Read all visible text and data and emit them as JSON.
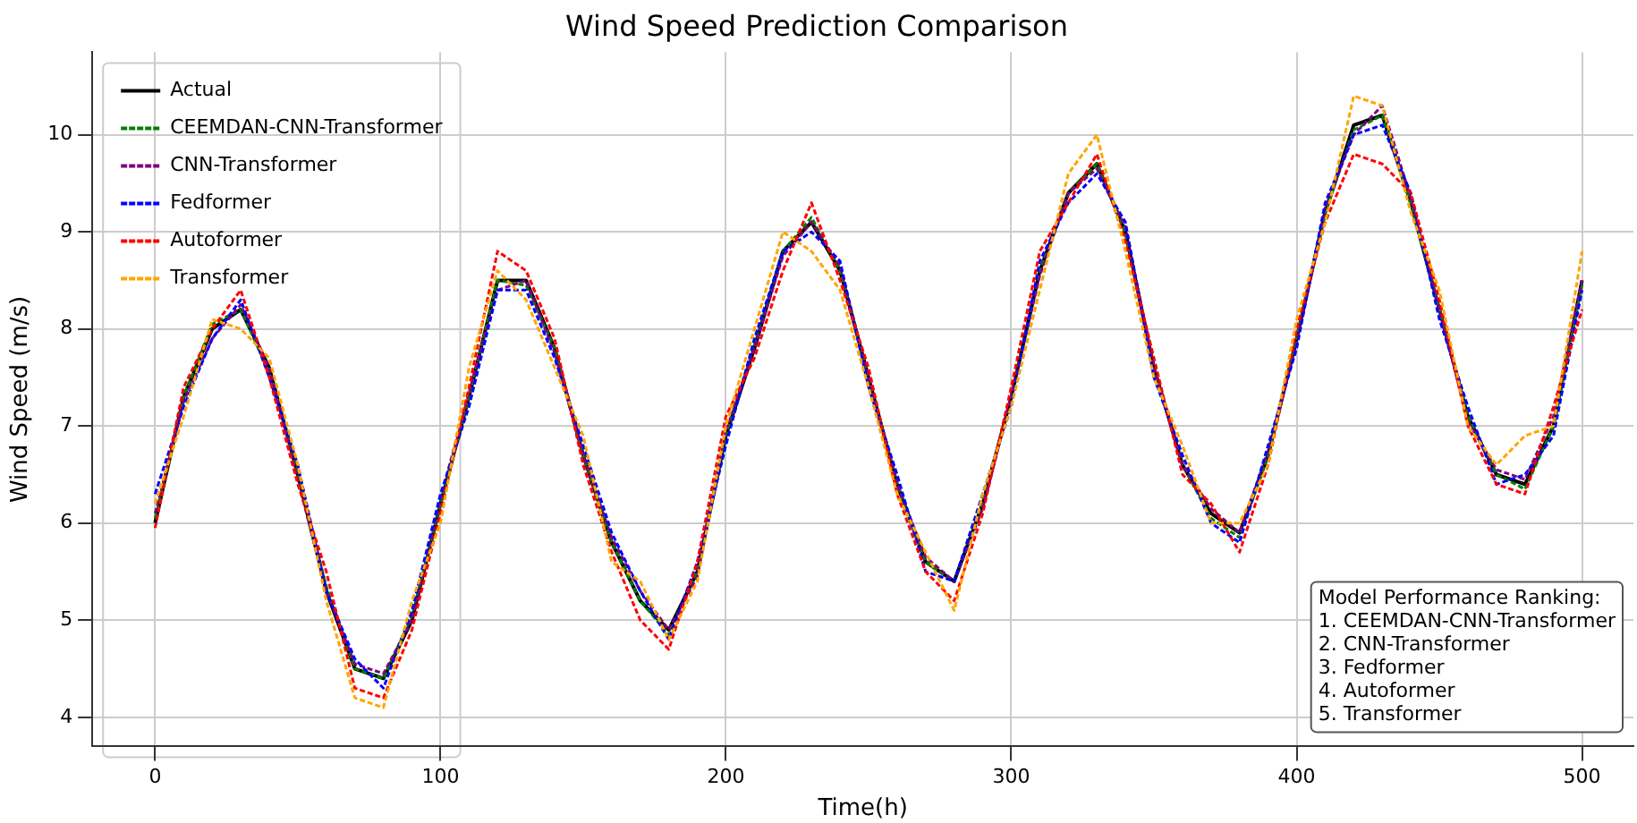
{
  "chart_data": {
    "type": "line",
    "title": "Wind Speed Prediction Comparison",
    "xlabel": "Time(h)",
    "ylabel": "Wind Speed (m/s)",
    "x": [
      0,
      10,
      20,
      30,
      40,
      50,
      60,
      70,
      80,
      90,
      100,
      110,
      120,
      130,
      140,
      150,
      160,
      170,
      180,
      190,
      200,
      210,
      220,
      230,
      240,
      250,
      260,
      270,
      280,
      290,
      300,
      310,
      320,
      330,
      340,
      350,
      360,
      370,
      380,
      390,
      400,
      410,
      420,
      430,
      440,
      450,
      460,
      470,
      480,
      490,
      500
    ],
    "series": [
      {
        "name": "Actual",
        "color": "#000000",
        "line_style": "solid",
        "values": [
          6.0,
          7.3,
          8.0,
          8.2,
          7.6,
          6.5,
          5.3,
          4.5,
          4.4,
          5.0,
          6.2,
          7.3,
          8.5,
          8.5,
          7.8,
          6.7,
          5.8,
          5.2,
          4.9,
          5.5,
          6.9,
          7.8,
          8.8,
          9.1,
          8.6,
          7.5,
          6.4,
          5.6,
          5.4,
          6.2,
          7.3,
          8.6,
          9.4,
          9.7,
          9.0,
          7.6,
          6.6,
          6.1,
          5.9,
          6.7,
          7.9,
          9.2,
          10.1,
          10.2,
          9.3,
          8.2,
          7.1,
          6.5,
          6.4,
          7.0,
          8.5
        ]
      },
      {
        "name": "CEEMDAN-CNN-Transformer",
        "color": "#008000",
        "line_style": "dashed",
        "values": [
          6.05,
          7.3,
          8.05,
          8.2,
          7.55,
          6.5,
          5.35,
          4.5,
          4.4,
          5.05,
          6.2,
          7.3,
          8.5,
          8.45,
          7.8,
          6.7,
          5.8,
          5.2,
          4.85,
          5.5,
          6.9,
          7.85,
          8.8,
          9.15,
          8.6,
          7.5,
          6.4,
          5.6,
          5.4,
          6.2,
          7.3,
          8.6,
          9.4,
          9.7,
          9.0,
          7.6,
          6.6,
          6.05,
          5.85,
          6.7,
          7.9,
          9.2,
          10.05,
          10.2,
          9.3,
          8.2,
          7.1,
          6.5,
          6.35,
          7.0,
          8.45
        ]
      },
      {
        "name": "CNN-Transformer",
        "color": "#800080",
        "line_style": "dashed",
        "values": [
          6.1,
          7.25,
          7.9,
          8.25,
          7.6,
          6.45,
          5.3,
          4.55,
          4.45,
          5.0,
          6.25,
          7.35,
          8.4,
          8.5,
          7.75,
          6.7,
          5.85,
          5.3,
          4.9,
          5.45,
          6.95,
          7.8,
          8.75,
          9.1,
          8.65,
          7.5,
          6.4,
          5.65,
          5.4,
          6.15,
          7.3,
          8.55,
          9.4,
          9.65,
          9.05,
          7.6,
          6.6,
          6.15,
          5.9,
          6.75,
          7.85,
          9.25,
          10.0,
          10.3,
          9.35,
          8.2,
          7.05,
          6.55,
          6.45,
          7.1,
          8.5
        ]
      },
      {
        "name": "Fedformer",
        "color": "#0000ff",
        "line_style": "dashed",
        "values": [
          6.3,
          7.2,
          7.9,
          8.3,
          7.5,
          6.6,
          5.3,
          4.6,
          4.3,
          5.1,
          6.3,
          7.2,
          8.4,
          8.4,
          7.7,
          6.8,
          5.9,
          5.3,
          4.8,
          5.6,
          6.8,
          7.9,
          8.8,
          9.0,
          8.7,
          7.4,
          6.5,
          5.5,
          5.4,
          6.3,
          7.2,
          8.7,
          9.3,
          9.6,
          9.1,
          7.5,
          6.7,
          6.0,
          5.8,
          6.8,
          7.8,
          9.3,
          10.0,
          10.1,
          9.4,
          8.1,
          7.2,
          6.4,
          6.5,
          6.9,
          8.4
        ]
      },
      {
        "name": "Autoformer",
        "color": "#ff0000",
        "line_style": "dashed",
        "values": [
          5.95,
          7.4,
          8.0,
          8.4,
          7.5,
          6.4,
          5.5,
          4.3,
          4.2,
          4.9,
          6.1,
          7.4,
          8.8,
          8.6,
          7.9,
          6.6,
          5.7,
          5.0,
          4.7,
          5.6,
          7.1,
          7.7,
          8.6,
          9.3,
          8.5,
          7.6,
          6.3,
          5.5,
          5.2,
          6.1,
          7.4,
          8.8,
          9.3,
          9.8,
          8.9,
          7.7,
          6.5,
          6.2,
          5.7,
          6.6,
          8.0,
          9.1,
          9.8,
          9.7,
          9.4,
          8.3,
          7.0,
          6.4,
          6.3,
          7.2,
          8.2
        ]
      },
      {
        "name": "Transformer",
        "color": "#ffa500",
        "line_style": "dashed",
        "values": [
          6.2,
          7.1,
          8.1,
          8.0,
          7.7,
          6.6,
          5.2,
          4.2,
          4.1,
          5.2,
          6.0,
          7.6,
          8.6,
          8.3,
          7.6,
          6.9,
          5.6,
          5.4,
          4.8,
          5.4,
          7.0,
          8.0,
          9.0,
          8.8,
          8.4,
          7.4,
          6.3,
          5.7,
          5.1,
          6.3,
          7.2,
          8.4,
          9.6,
          10.0,
          8.8,
          7.5,
          6.8,
          6.0,
          6.0,
          6.6,
          8.1,
          9.1,
          10.4,
          10.3,
          9.2,
          8.4,
          7.0,
          6.6,
          6.9,
          7.0,
          8.8
        ]
      }
    ],
    "xlim": [
      -22,
      518
    ],
    "xticks": [
      0,
      100,
      200,
      300,
      400,
      500
    ],
    "ylim": [
      3.7,
      10.85
    ],
    "yticks": [
      4,
      5,
      6,
      7,
      8,
      9,
      10
    ],
    "grid": true,
    "legend": "top left",
    "marker": "none",
    "annotations": [
      "Model Performance Ranking:\n1. CEEMDAN-CNN-Transformer\n2. CNN-Transformer\n3. Fedformer\n4. Autoformer\n5. Transformer"
    ]
  }
}
